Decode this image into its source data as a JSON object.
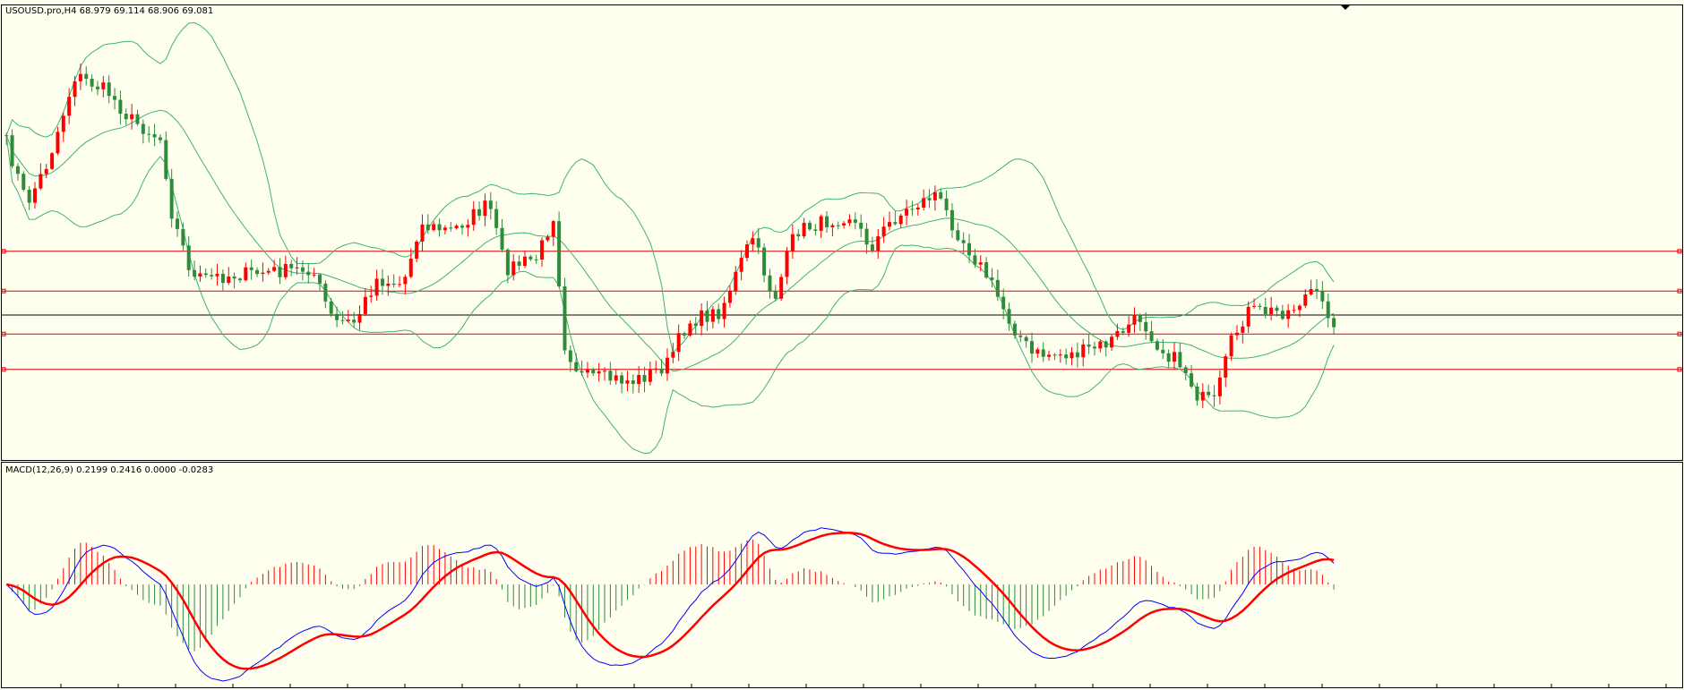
{
  "header": {
    "title": "USOUSD.pro,H4  68.979 69.114 68.906 69.081"
  },
  "indicator": {
    "label": "MACD(12,26,9) 0.2199 0.2416 0.0000 -0.0283"
  }
}
